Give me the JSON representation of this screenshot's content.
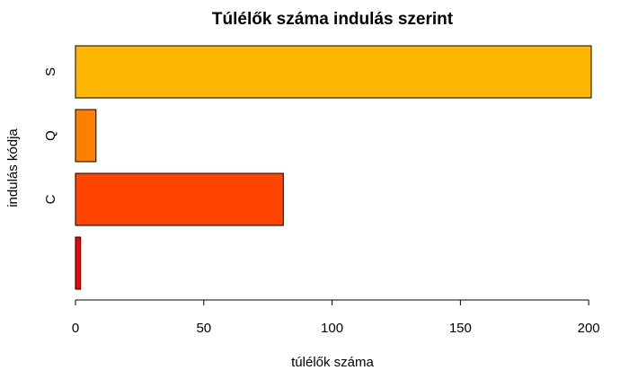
{
  "chart_data": {
    "type": "bar",
    "orientation": "horizontal",
    "title": "Túlélők száma indulás szerint",
    "xlabel": "túlélők száma",
    "ylabel": "indulás kódja",
    "categories": [
      "",
      "C",
      "Q",
      "S"
    ],
    "values": [
      2,
      81,
      8,
      201
    ],
    "colors": [
      "#FF0000",
      "#FF4500",
      "#FF7F00",
      "#FFB600"
    ],
    "xlim": [
      0,
      201
    ],
    "xticks": [
      0,
      50,
      100,
      150,
      200
    ],
    "grid": false,
    "legend": "none"
  }
}
